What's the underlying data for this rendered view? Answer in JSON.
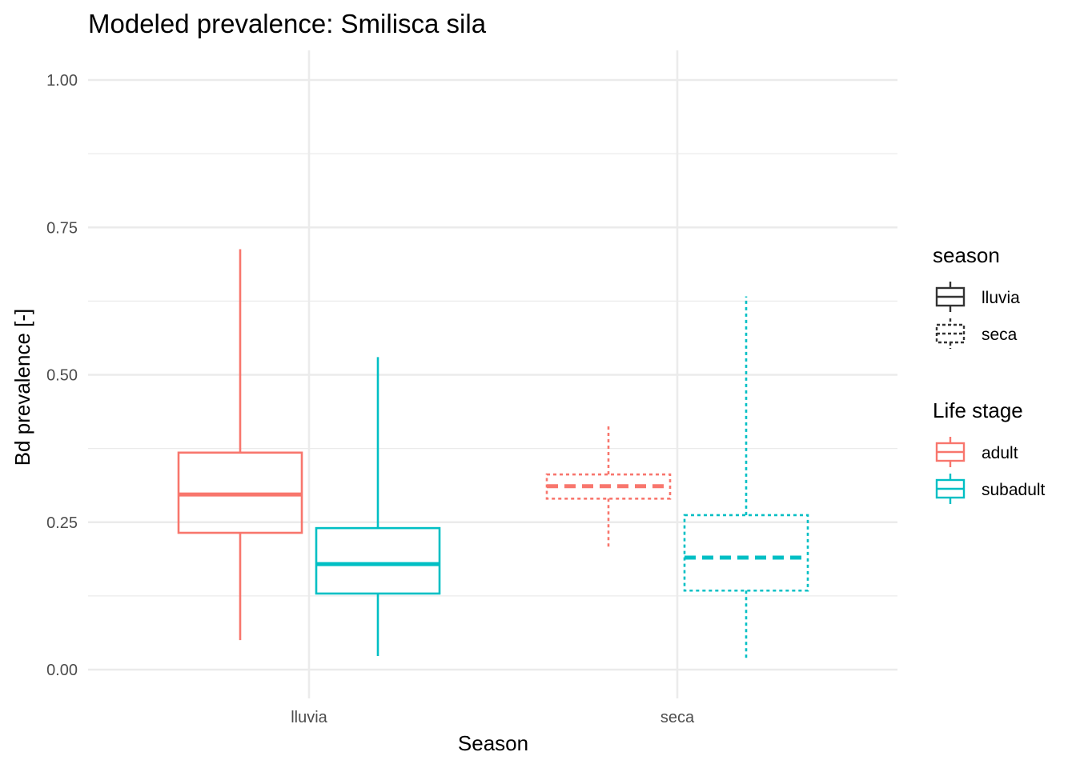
{
  "chart_data": {
    "type": "boxplot",
    "title": "Modeled prevalence: Smilisca sila",
    "xlabel": "Season",
    "ylabel": "Bd prevalence [-]",
    "ylim": [
      -0.04,
      1.05
    ],
    "yticks": [
      0.0,
      0.25,
      0.5,
      0.75,
      1.0
    ],
    "ytick_labels": [
      "0.00",
      "0.25",
      "0.50",
      "0.75",
      "1.00"
    ],
    "categories": [
      "lluvia",
      "seca"
    ],
    "grid": true,
    "legend_position": "right",
    "legends": [
      {
        "title": "season",
        "aesthetic": "linetype",
        "entries": [
          {
            "label": "lluvia",
            "linetype": "solid"
          },
          {
            "label": "seca",
            "linetype": "dotted"
          }
        ]
      },
      {
        "title": "Life stage",
        "aesthetic": "color",
        "entries": [
          {
            "label": "adult",
            "color": "#F8766D"
          },
          {
            "label": "subadult",
            "color": "#00BFC4"
          }
        ]
      }
    ],
    "series": [
      {
        "name": "adult",
        "color": "#F8766D",
        "boxes": [
          {
            "category": "lluvia",
            "min": 0.05,
            "q1": 0.232,
            "median": 0.297,
            "q3": 0.368,
            "max": 0.713,
            "linetype": "solid"
          },
          {
            "category": "seca",
            "min": 0.205,
            "q1": 0.29,
            "median": 0.311,
            "q3": 0.331,
            "max": 0.415,
            "linetype": "dotted"
          }
        ]
      },
      {
        "name": "subadult",
        "color": "#00BFC4",
        "boxes": [
          {
            "category": "lluvia",
            "min": 0.023,
            "q1": 0.129,
            "median": 0.179,
            "q3": 0.24,
            "max": 0.53,
            "linetype": "solid"
          },
          {
            "category": "seca",
            "min": 0.017,
            "q1": 0.134,
            "median": 0.19,
            "q3": 0.262,
            "max": 0.633,
            "linetype": "dotted"
          }
        ]
      }
    ]
  }
}
